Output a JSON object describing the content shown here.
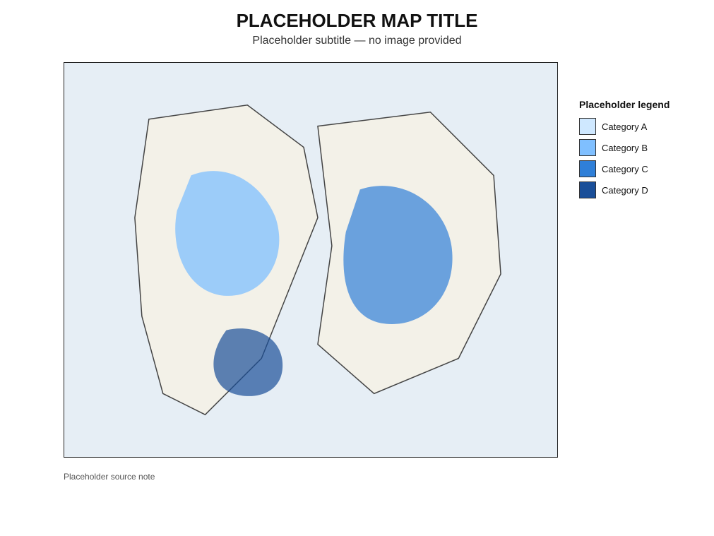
{
  "header": {
    "title": "PLACEHOLDER MAP TITLE",
    "subtitle": "Placeholder subtitle — no image provided"
  },
  "legend": {
    "title": "Placeholder legend",
    "items": [
      {
        "label": "Category A",
        "color": "#cfe8ff"
      },
      {
        "label": "Category B",
        "color": "#7fbfff"
      },
      {
        "label": "Category C",
        "color": "#2f7fd8"
      },
      {
        "label": "Category D",
        "color": "#1a4f99"
      }
    ]
  },
  "footer": {
    "note": "Placeholder source note"
  }
}
